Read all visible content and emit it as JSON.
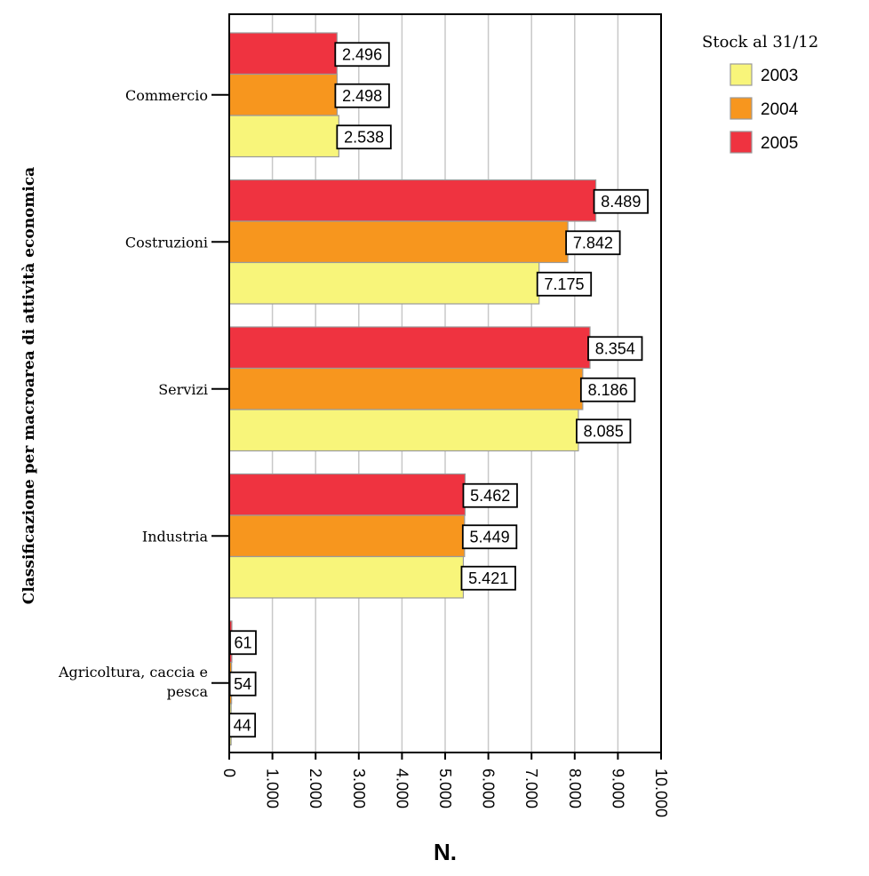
{
  "chart_data": {
    "type": "bar",
    "orientation": "horizontal",
    "title": "",
    "xlabel": "N.",
    "ylabel": "Classificazione per macroarea di attività economica",
    "xlim": [
      0,
      10000
    ],
    "xticks": [
      0,
      1000,
      2000,
      3000,
      4000,
      5000,
      6000,
      7000,
      8000,
      9000,
      10000
    ],
    "xtick_labels": [
      "0",
      "1.000",
      "2.000",
      "3.000",
      "4.000",
      "5.000",
      "6.000",
      "7.000",
      "8.000",
      "9.000",
      "10.000"
    ],
    "grid": "vertical",
    "categories": [
      "Commercio",
      "Costruzioni",
      "Servizi",
      "Industria",
      "Agricoltura, caccia e pesca"
    ],
    "legend": {
      "title": "Stock al 31/12",
      "position": "top-right"
    },
    "series": [
      {
        "name": "2005",
        "color": "#ef3340",
        "values": [
          2496,
          8489,
          8354,
          5462,
          61
        ],
        "labels": [
          "2.496",
          "8.489",
          "8.354",
          "5.462",
          "61"
        ]
      },
      {
        "name": "2004",
        "color": "#f7961e",
        "values": [
          2498,
          7842,
          8186,
          5449,
          54
        ],
        "labels": [
          "2.498",
          "7.842",
          "8.186",
          "5.449",
          "54"
        ]
      },
      {
        "name": "2003",
        "color": "#f8f57a",
        "values": [
          2538,
          7175,
          8085,
          5421,
          44
        ],
        "labels": [
          "2.538",
          "7.175",
          "8.085",
          "5.421",
          "44"
        ]
      }
    ],
    "legend_order": [
      "2003",
      "2004",
      "2005"
    ]
  }
}
